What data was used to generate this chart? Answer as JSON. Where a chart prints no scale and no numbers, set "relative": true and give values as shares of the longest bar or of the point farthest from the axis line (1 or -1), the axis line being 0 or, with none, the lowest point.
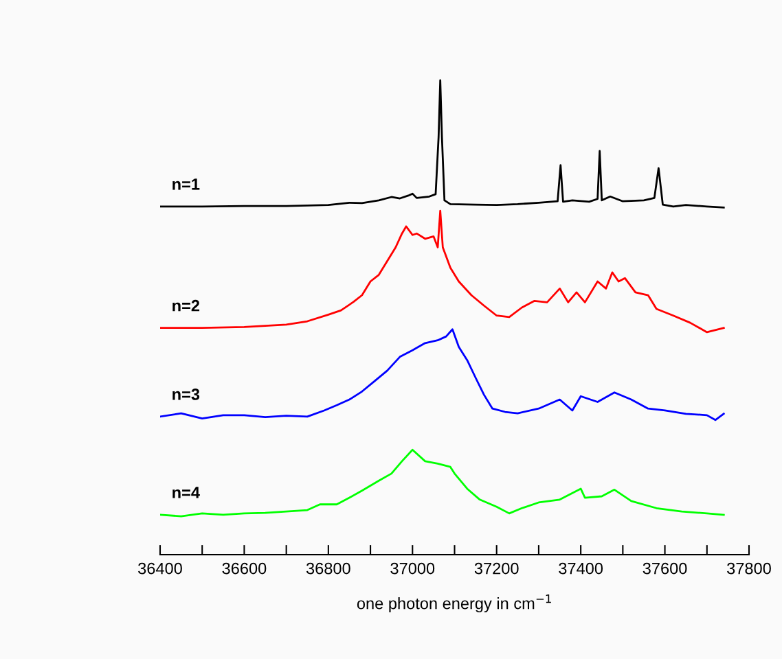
{
  "chart_data": {
    "type": "line",
    "relative": true,
    "xlabel": "one photon energy in cm$^{−1}$",
    "xlim": [
      36400,
      37800
    ],
    "xticks": [
      36400,
      {
        "value": 36500,
        "label": null
      },
      36600,
      {
        "value": 36700,
        "label": null
      },
      36800,
      {
        "value": 36900,
        "label": null
      },
      37000,
      {
        "value": 37100,
        "label": null
      },
      37200,
      {
        "value": 37300,
        "label": null
      },
      37400,
      {
        "value": 37500,
        "label": null
      },
      37600,
      {
        "value": 37700,
        "label": null
      },
      37800
    ],
    "grid": false,
    "legend": false,
    "marker": "none",
    "line_style": "solid",
    "series": [
      {
        "name": "n=1",
        "color": "#000000",
        "x": [
          36400,
          36500,
          36600,
          36700,
          36800,
          36850,
          36880,
          36920,
          36950,
          36970,
          36990,
          37000,
          37010,
          37040,
          37055,
          37062,
          37066,
          37070,
          37076,
          37090,
          37150,
          37200,
          37250,
          37300,
          37330,
          37345,
          37352,
          37358,
          37380,
          37420,
          37440,
          37445,
          37450,
          37470,
          37500,
          37550,
          37575,
          37585,
          37595,
          37620,
          37650,
          37700,
          37740
        ],
        "values": [
          0.734,
          0.734,
          0.735,
          0.735,
          0.737,
          0.742,
          0.741,
          0.747,
          0.754,
          0.751,
          0.757,
          0.761,
          0.752,
          0.755,
          0.76,
          0.88,
          1.0,
          0.88,
          0.747,
          0.739,
          0.738,
          0.737,
          0.739,
          0.742,
          0.744,
          0.745,
          0.821,
          0.744,
          0.747,
          0.744,
          0.75,
          0.851,
          0.747,
          0.755,
          0.745,
          0.747,
          0.752,
          0.815,
          0.738,
          0.734,
          0.737,
          0.734,
          0.732
        ]
      },
      {
        "name": "n=2",
        "color": "#ff0000",
        "x": [
          36400,
          36500,
          36600,
          36700,
          36750,
          36800,
          36830,
          36860,
          36880,
          36900,
          36920,
          36940,
          36960,
          36975,
          36985,
          37000,
          37010,
          37030,
          37050,
          37060,
          37066,
          37072,
          37090,
          37110,
          37140,
          37170,
          37200,
          37230,
          37260,
          37290,
          37320,
          37350,
          37370,
          37390,
          37410,
          37440,
          37460,
          37475,
          37490,
          37505,
          37530,
          37560,
          37580,
          37620,
          37660,
          37700,
          37740
        ],
        "values": [
          0.478,
          0.478,
          0.48,
          0.485,
          0.492,
          0.506,
          0.515,
          0.533,
          0.547,
          0.576,
          0.59,
          0.619,
          0.648,
          0.677,
          0.692,
          0.674,
          0.677,
          0.666,
          0.671,
          0.648,
          0.725,
          0.648,
          0.605,
          0.576,
          0.547,
          0.525,
          0.504,
          0.501,
          0.521,
          0.535,
          0.532,
          0.561,
          0.532,
          0.553,
          0.532,
          0.576,
          0.561,
          0.595,
          0.576,
          0.583,
          0.553,
          0.547,
          0.518,
          0.504,
          0.489,
          0.469,
          0.478
        ]
      },
      {
        "name": "n=3",
        "color": "#0000ff",
        "x": [
          36400,
          36450,
          36500,
          36550,
          36600,
          36650,
          36700,
          36750,
          36790,
          36820,
          36850,
          36880,
          36910,
          36940,
          36970,
          37000,
          37030,
          37060,
          37080,
          37095,
          37110,
          37130,
          37150,
          37170,
          37190,
          37220,
          37250,
          37300,
          37350,
          37380,
          37400,
          37440,
          37480,
          37520,
          37560,
          37600,
          37650,
          37700,
          37720,
          37740
        ],
        "values": [
          0.291,
          0.298,
          0.287,
          0.294,
          0.294,
          0.29,
          0.293,
          0.291,
          0.304,
          0.315,
          0.327,
          0.344,
          0.366,
          0.388,
          0.417,
          0.431,
          0.446,
          0.452,
          0.46,
          0.475,
          0.438,
          0.41,
          0.373,
          0.337,
          0.308,
          0.301,
          0.298,
          0.308,
          0.327,
          0.304,
          0.334,
          0.322,
          0.342,
          0.327,
          0.308,
          0.304,
          0.297,
          0.294,
          0.284,
          0.297
        ]
      },
      {
        "name": "n=4",
        "color": "#00ff00",
        "x": [
          36400,
          36450,
          36500,
          36550,
          36600,
          36650,
          36700,
          36750,
          36780,
          36820,
          36850,
          36880,
          36920,
          36950,
          36975,
          37000,
          37030,
          37060,
          37090,
          37100,
          37130,
          37160,
          37200,
          37230,
          37260,
          37300,
          37350,
          37400,
          37410,
          37450,
          37480,
          37520,
          37580,
          37640,
          37700,
          37740
        ],
        "values": [
          0.084,
          0.081,
          0.087,
          0.084,
          0.087,
          0.088,
          0.091,
          0.094,
          0.106,
          0.106,
          0.12,
          0.135,
          0.156,
          0.171,
          0.197,
          0.221,
          0.197,
          0.192,
          0.185,
          0.171,
          0.139,
          0.116,
          0.101,
          0.087,
          0.098,
          0.11,
          0.116,
          0.139,
          0.12,
          0.123,
          0.137,
          0.113,
          0.098,
          0.091,
          0.087,
          0.084
        ]
      }
    ]
  }
}
